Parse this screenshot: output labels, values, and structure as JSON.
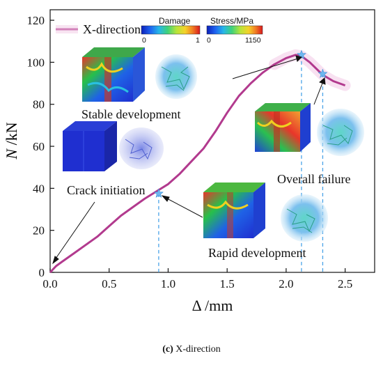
{
  "chart_data": {
    "type": "line",
    "xlabel": "Δ /mm",
    "ylabel_italic": "N",
    "ylabel_rest": " /kN",
    "xlim": [
      0,
      2.75
    ],
    "ylim": [
      0,
      125
    ],
    "xticks": [
      "0.0",
      "0.5",
      "1.0",
      "1.5",
      "2.0",
      "2.5"
    ],
    "yticks": [
      "0",
      "20",
      "40",
      "60",
      "80",
      "100",
      "120"
    ],
    "grid": false,
    "legend_position": "top-left",
    "series": [
      {
        "name": "X-direction",
        "color": "#b23a8e",
        "x": [
          0,
          0.05,
          0.1,
          0.2,
          0.3,
          0.4,
          0.5,
          0.6,
          0.7,
          0.8,
          0.9,
          1.0,
          1.1,
          1.2,
          1.3,
          1.4,
          1.5,
          1.6,
          1.7,
          1.8,
          1.9,
          2.0,
          2.08,
          2.13,
          2.2,
          2.31,
          2.4,
          2.5
        ],
        "y": [
          0,
          3,
          5,
          9,
          13,
          17,
          22,
          27,
          31,
          35,
          38.5,
          42,
          47,
          53,
          59,
          67,
          76,
          84,
          90,
          95,
          99,
          102,
          103.5,
          103,
          100,
          94,
          91,
          89
        ]
      }
    ],
    "key_points": [
      {
        "x": 0.92,
        "y": 37.5
      },
      {
        "x": 2.13,
        "y": 103.5
      },
      {
        "x": 2.31,
        "y": 94.5
      }
    ],
    "annotations": [
      "Stable development",
      "Crack initiation",
      "Overall failure",
      "Rapid development"
    ],
    "colorbars": [
      {
        "title": "Damage",
        "min_label": "0",
        "max_label": "1"
      },
      {
        "title": "Stress/MPa",
        "min_label": "0",
        "max_label": "1150"
      }
    ]
  },
  "caption": {
    "label": "(c)",
    "text": " X-direction"
  },
  "colors": {
    "curve": "#b23a8e",
    "band": "#f2c9e6",
    "marker": "#6fb7ef",
    "dashed": "#4aa3e8",
    "model_low": "#1f2fd0",
    "model_mid": "#27c04a",
    "model_high": "#e8362a"
  }
}
